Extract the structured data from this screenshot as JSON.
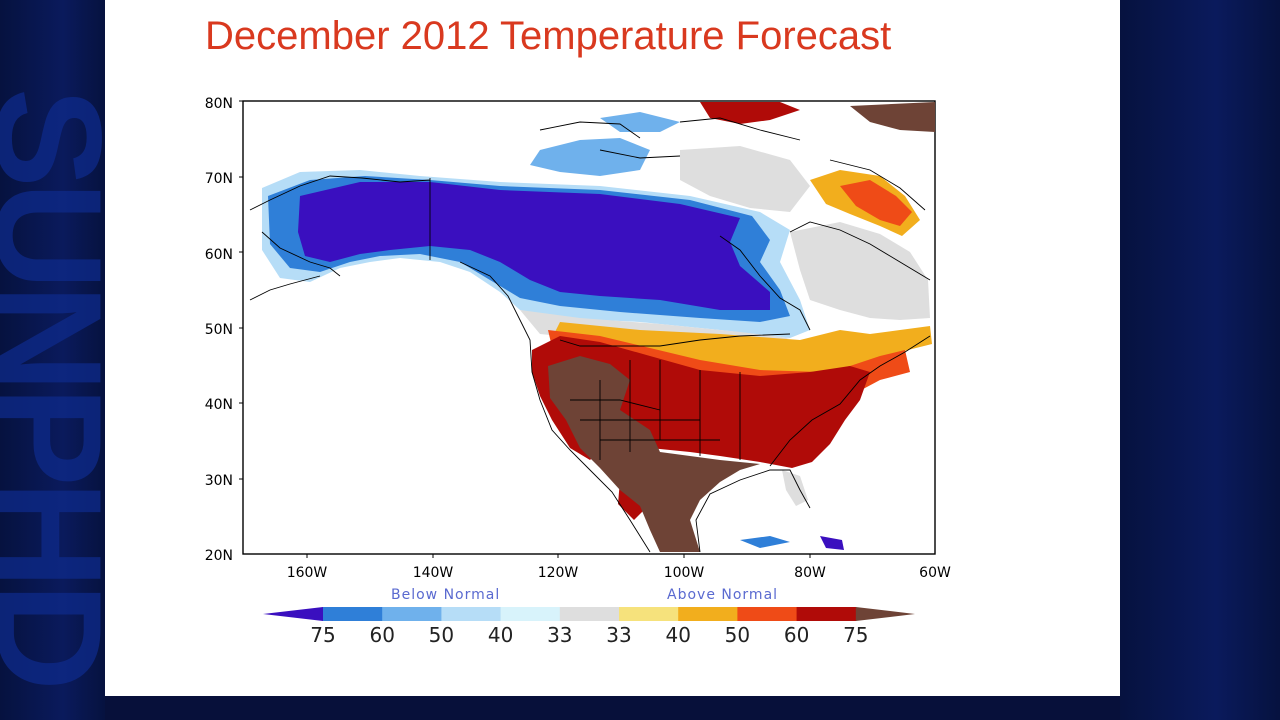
{
  "title": "December 2012 Temperature Forecast",
  "watermark": "SUNPHD",
  "map": {
    "lat_labels": [
      "80N",
      "70N",
      "60N",
      "50N",
      "40N",
      "30N",
      "20N"
    ],
    "lon_labels": [
      "160W",
      "140W",
      "120W",
      "100W",
      "80W",
      "60W"
    ],
    "lat_range": [
      20,
      80
    ],
    "lon_range": [
      -170,
      -60
    ]
  },
  "legend": {
    "below_label": "Below Normal",
    "above_label": "Above Normal",
    "ticks": [
      "75",
      "60",
      "50",
      "40",
      "33",
      "33",
      "40",
      "50",
      "60",
      "75"
    ],
    "colors": [
      "#3a0fbf",
      "#2f7fd8",
      "#6fb1ec",
      "#b6ddf7",
      "#d8f3fb",
      "#dedede",
      "#f6e27c",
      "#f2ae1d",
      "#ef4b17",
      "#b00b08",
      "#6e4336"
    ]
  }
}
